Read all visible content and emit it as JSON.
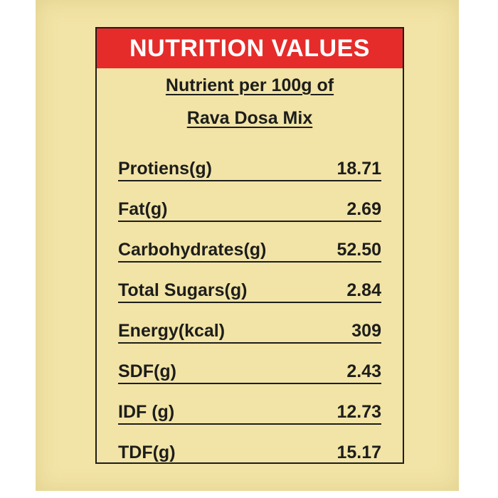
{
  "panel": {
    "title": "NUTRITION VALUES",
    "subtitle_line1": "Nutrient per 100g of",
    "subtitle_line2": "Rava Dosa Mix",
    "colors": {
      "header_bg": "#e52c2a",
      "background": "#f2e4a6",
      "text": "#1d1d1b"
    }
  },
  "nutrients": [
    {
      "label": "Protiens(g)",
      "value": "18.71"
    },
    {
      "label": "Fat(g)",
      "value": "2.69"
    },
    {
      "label": "Carbohydrates(g)",
      "value": "52.50"
    },
    {
      "label": "Total Sugars(g)",
      "value": "2.84"
    },
    {
      "label": "Energy(kcal)",
      "value": "309"
    },
    {
      "label": "SDF(g)",
      "value": "2.43"
    },
    {
      "label": "IDF (g)",
      "value": "12.73"
    },
    {
      "label": "TDF(g)",
      "value": "15.17"
    }
  ]
}
